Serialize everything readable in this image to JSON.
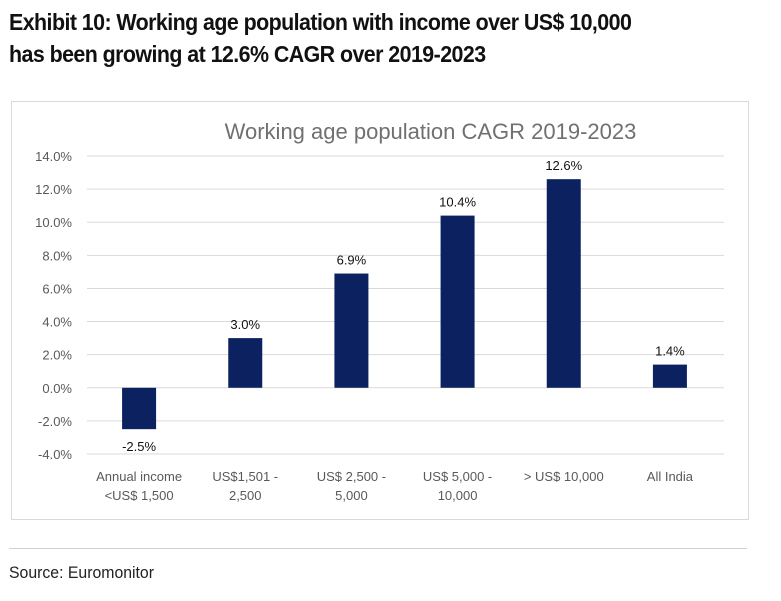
{
  "header": {
    "title_line1": "Exhibit 10: Working age population with income over US$ 10,000",
    "title_line2": "has been growing at 12.6% CAGR over 2019-2023"
  },
  "footer": {
    "source": "Source: Euromonitor"
  },
  "chart_data": {
    "type": "bar",
    "title": "Working age population CAGR 2019-2023",
    "categories": [
      [
        "Annual income",
        "<US$ 1,500"
      ],
      [
        "US$1,501 -",
        "2,500"
      ],
      [
        "US$ 2,500 -",
        "5,000"
      ],
      [
        "US$ 5,000 -",
        "10,000"
      ],
      [
        "> US$ 10,000"
      ],
      [
        "All India"
      ]
    ],
    "values": [
      -2.5,
      3.0,
      6.9,
      10.4,
      12.6,
      1.4
    ],
    "data_labels": [
      "-2.5%",
      "3.0%",
      "6.9%",
      "10.4%",
      "12.6%",
      "1.4%"
    ],
    "yticks": [
      "-4.0%",
      "-2.0%",
      "0.0%",
      "2.0%",
      "4.0%",
      "6.0%",
      "8.0%",
      "10.0%",
      "12.0%",
      "14.0%"
    ],
    "ylim": [
      -4,
      14
    ],
    "xlabel": "",
    "ylabel": "",
    "grid": true,
    "bar_color": "#0b2160"
  }
}
